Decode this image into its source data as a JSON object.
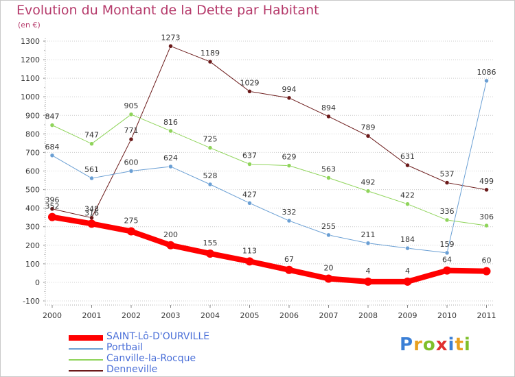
{
  "title": "Evolution du Montant de la Dette par Habitant",
  "subtitle": "(en €)",
  "logo": {
    "text": "Proxiti",
    "colors": [
      "#3a7fd6",
      "#e8a020",
      "#7fbf2a",
      "#e03030",
      "#3a7fd6",
      "#e8a020",
      "#7fbf2a"
    ]
  },
  "chart_data": {
    "type": "line",
    "x": [
      "2000",
      "2001",
      "2002",
      "2003",
      "2004",
      "2005",
      "2006",
      "2007",
      "2008",
      "2009",
      "2010",
      "2011"
    ],
    "ylim": [
      -100,
      1300
    ],
    "yticks": [
      -100,
      0,
      100,
      200,
      300,
      400,
      500,
      600,
      700,
      800,
      900,
      1000,
      1100,
      1200,
      1300
    ],
    "grid": "horizontal-dotted",
    "legend_position": "bottom-left",
    "series": [
      {
        "name": "SAINT-Lô-D'OURVILLE",
        "color": "#ff0000",
        "width": 8,
        "values": [
          352,
          316,
          275,
          200,
          155,
          113,
          67,
          20,
          4,
          4,
          64,
          60
        ]
      },
      {
        "name": "Portbail",
        "color": "#6a9fd4",
        "width": 1,
        "values": [
          684,
          561,
          600,
          624,
          528,
          427,
          332,
          255,
          211,
          184,
          159,
          1086
        ]
      },
      {
        "name": "Canville-la-Rocque",
        "color": "#8fd45a",
        "width": 1,
        "values": [
          847,
          747,
          905,
          816,
          725,
          637,
          629,
          563,
          492,
          422,
          336,
          306
        ]
      },
      {
        "name": "Denneville",
        "color": "#6b1a1a",
        "width": 1,
        "values": [
          396,
          348,
          771,
          1273,
          1189,
          1029,
          994,
          894,
          789,
          631,
          537,
          499
        ]
      }
    ]
  }
}
